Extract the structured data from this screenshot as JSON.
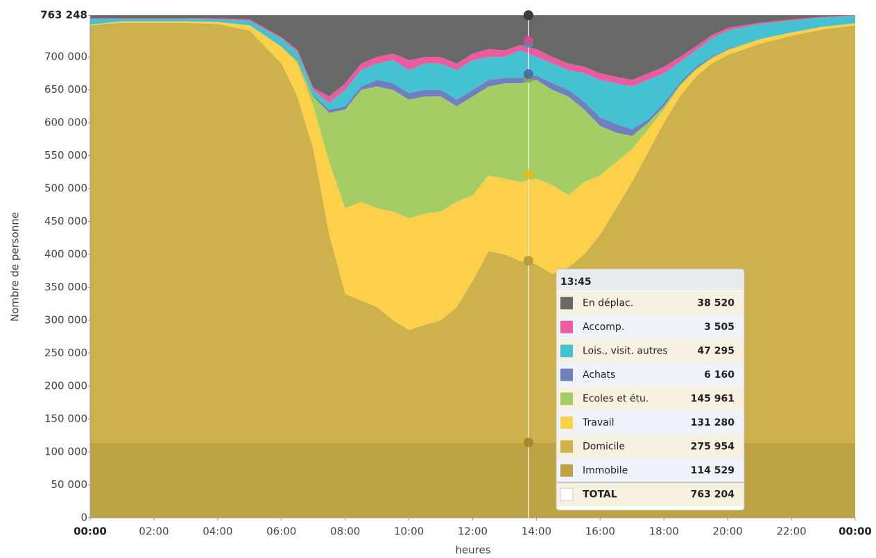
{
  "chart_data": {
    "type": "stacked_area",
    "y_label": "Nombre de personne",
    "x_label": "heures",
    "x": [
      0,
      1,
      2,
      3,
      4,
      5,
      6,
      6.5,
      7,
      7.5,
      8,
      8.5,
      9,
      9.5,
      10,
      10.5,
      11,
      11.5,
      12,
      12.5,
      13,
      13.5,
      14,
      14.5,
      15,
      15.5,
      16,
      16.5,
      17,
      17.5,
      18,
      18.5,
      19,
      19.5,
      20,
      21,
      22,
      23,
      24
    ],
    "xlim": [
      0,
      24
    ],
    "xticks": [
      {
        "value": 0,
        "label": "00:00"
      },
      {
        "value": 2,
        "label": "02:00"
      },
      {
        "value": 4,
        "label": "04:00"
      },
      {
        "value": 6,
        "label": "06:00"
      },
      {
        "value": 8,
        "label": "08:00"
      },
      {
        "value": 10,
        "label": "10:00"
      },
      {
        "value": 12,
        "label": "12:00"
      },
      {
        "value": 14,
        "label": "14:00"
      },
      {
        "value": 16,
        "label": "16:00"
      },
      {
        "value": 18,
        "label": "18:00"
      },
      {
        "value": 20,
        "label": "20:00"
      },
      {
        "value": 22,
        "label": "22:00"
      },
      {
        "value": 24,
        "label": "00:00"
      }
    ],
    "ylim": [
      0,
      763248
    ],
    "yticks": [
      0,
      {
        "value": 50000,
        "label": "50 000"
      },
      {
        "value": 100000,
        "label": "100 000"
      },
      {
        "value": 150000,
        "label": "150 000"
      },
      {
        "value": 200000,
        "label": "200 000"
      },
      {
        "value": 250000,
        "label": "250 000"
      },
      {
        "value": 300000,
        "label": "300 000"
      },
      {
        "value": 350000,
        "label": "350 000"
      },
      {
        "value": 400000,
        "label": "400 000"
      },
      {
        "value": 450000,
        "label": "450 000"
      },
      {
        "value": 500000,
        "label": "500 000"
      },
      {
        "value": 550000,
        "label": "550 000"
      },
      {
        "value": 600000,
        "label": "600 000"
      },
      {
        "value": 650000,
        "label": "650 000"
      },
      {
        "value": 700000,
        "label": "700 000"
      },
      {
        "value": 763248,
        "label": "763 248"
      }
    ],
    "grid": false,
    "series": [
      {
        "name": "Immobile",
        "color": "#bea345",
        "dot": "#9c8320",
        "values": [
          114500,
          114500,
          114500,
          114500,
          114500,
          114500,
          114500,
          114500,
          114500,
          114500,
          114500,
          114500,
          114500,
          114500,
          114500,
          114500,
          114500,
          114500,
          114500,
          114500,
          114500,
          114500,
          114500,
          114500,
          114500,
          114500,
          114500,
          114500,
          114500,
          114500,
          114500,
          114500,
          114500,
          114500,
          114500,
          114500,
          114500,
          114500,
          114500
        ]
      },
      {
        "name": "Domicile",
        "color": "#cdb14c",
        "dot": "#b09530",
        "values": [
          633500,
          637500,
          637500,
          637500,
          635500,
          625500,
          575500,
          525500,
          445500,
          315500,
          225500,
          215500,
          205500,
          185500,
          170500,
          178500,
          185500,
          205500,
          245500,
          290500,
          285500,
          275500,
          270500,
          255500,
          265500,
          285500,
          315500,
          355500,
          395500,
          440500,
          485500,
          525500,
          555500,
          575500,
          588500,
          605500,
          617500,
          627500,
          633500
        ]
      },
      {
        "name": "Travail",
        "color": "#fdd04a",
        "dot": "#eab820",
        "values": [
          1000,
          2000,
          2000,
          2000,
          3000,
          8000,
          25000,
          50000,
          65000,
          110000,
          130000,
          150000,
          150000,
          165000,
          170000,
          169000,
          165000,
          160000,
          130000,
          115000,
          115000,
          120000,
          130000,
          135000,
          110000,
          110000,
          90000,
          70000,
          50000,
          35000,
          20000,
          15000,
          10000,
          7000,
          7000,
          6000,
          5000,
          4000,
          3000
        ]
      },
      {
        "name": "Ecoles et étu.",
        "color": "#a4cd63",
        "dot": "#7fb23a",
        "values": [
          0,
          0,
          0,
          0,
          0,
          0,
          1000,
          5000,
          15000,
          75000,
          150000,
          170000,
          185000,
          185000,
          180000,
          178000,
          175000,
          145000,
          150000,
          135000,
          145000,
          150000,
          150000,
          145000,
          150000,
          110000,
          75000,
          45000,
          20000,
          10000,
          5000,
          3000,
          2000,
          2000,
          1000,
          1000,
          0,
          0,
          0
        ]
      },
      {
        "name": "Achats",
        "color": "#6f7fc0",
        "dot": "#4e5fae",
        "values": [
          0,
          0,
          0,
          0,
          0,
          0,
          1000,
          2000,
          2000,
          5000,
          5000,
          5000,
          10000,
          10000,
          10000,
          10000,
          10000,
          10000,
          10000,
          10000,
          8000,
          8000,
          7000,
          10000,
          10000,
          12000,
          13000,
          13000,
          10000,
          5000,
          5000,
          3000,
          3000,
          2000,
          1000,
          0,
          0,
          0,
          0
        ]
      },
      {
        "name": "Lois., visit. autres",
        "color": "#45c2d2",
        "dot": "#1aa9bb",
        "values": [
          9000,
          4000,
          4000,
          4000,
          4000,
          7000,
          11000,
          11000,
          8000,
          10000,
          25000,
          25000,
          25000,
          35000,
          35000,
          40000,
          40000,
          45000,
          45000,
          35000,
          32000,
          42000,
          28000,
          30000,
          30000,
          43000,
          57000,
          62000,
          65000,
          60000,
          45000,
          31000,
          25000,
          27000,
          28000,
          23000,
          18000,
          14000,
          11000
        ]
      },
      {
        "name": "Accomp.",
        "color": "#ea5c9f",
        "dot": "#e2408d",
        "values": [
          1000,
          1000,
          1000,
          1000,
          1500,
          2000,
          2000,
          3000,
          3000,
          10000,
          10000,
          10000,
          10000,
          10000,
          15000,
          10000,
          10000,
          10000,
          10000,
          12000,
          10000,
          8000,
          12000,
          10000,
          10000,
          10000,
          10000,
          10000,
          10000,
          10000,
          10000,
          8000,
          6000,
          5000,
          4000,
          2000,
          2000,
          1000,
          1000
        ]
      },
      {
        "name": "En déplac.",
        "color": "#686868",
        "dot": "#4a4a4a",
        "values": [
          4248,
          4248,
          4248,
          4248,
          4748,
          6248,
          33248,
          52248,
          110248,
          123248,
          103248,
          73248,
          63248,
          58248,
          68248,
          63248,
          63248,
          73248,
          58248,
          51248,
          53248,
          45248,
          51248,
          63248,
          73248,
          78248,
          88248,
          93248,
          98248,
          88248,
          78248,
          63248,
          47248,
          30248,
          19248,
          11248,
          6248,
          2248,
          248
        ]
      }
    ],
    "tooltip": {
      "x": 13.75,
      "title": "13:45",
      "values": [
        114529,
        275954,
        131280,
        145961,
        6160,
        47295,
        3505,
        38520
      ],
      "value_labels": [
        "114 529",
        "275 954",
        "131 280",
        "145 961",
        "6 160",
        "47 295",
        "3 505",
        "38 520"
      ],
      "total_name": "TOTAL",
      "total": 763204,
      "total_label": "763 204"
    }
  }
}
